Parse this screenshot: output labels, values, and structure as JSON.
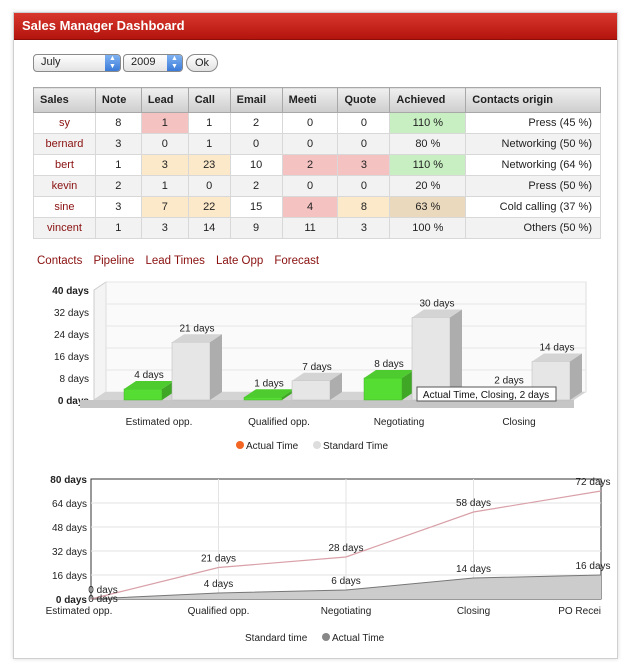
{
  "window": {
    "title": "Sales Manager Dashboard"
  },
  "filters": {
    "month": "July",
    "year": "2009",
    "ok_label": "Ok"
  },
  "table": {
    "headers": [
      "Sales",
      "Note",
      "Lead",
      "Call",
      "Email",
      "Meeti",
      "Quote",
      "Achieved",
      "Contacts origin"
    ],
    "rows": [
      [
        "sy",
        "8",
        "1",
        "1",
        "2",
        "0",
        "0",
        "110 %",
        "Press (45 %)"
      ],
      [
        "bernard",
        "3",
        "0",
        "1",
        "0",
        "0",
        "0",
        "80 %",
        "Networking (50 %)"
      ],
      [
        "bert",
        "1",
        "3",
        "23",
        "10",
        "2",
        "3",
        "110 %",
        "Networking (64 %)"
      ],
      [
        "kevin",
        "2",
        "1",
        "0",
        "2",
        "0",
        "0",
        "20 %",
        "Press (50 %)"
      ],
      [
        "sine",
        "3",
        "7",
        "22",
        "15",
        "4",
        "8",
        "63 %",
        "Cold calling (37 %)"
      ],
      [
        "vincent",
        "1",
        "3",
        "14",
        "9",
        "11",
        "3",
        "100 %",
        "Others (50 %)"
      ]
    ]
  },
  "tabs": [
    "Contacts",
    "Pipeline",
    "Lead Times",
    "Late Opp",
    "Forecast"
  ],
  "chart_data": [
    {
      "type": "bar",
      "categories": [
        "Estimated opp.",
        "Qualified opp.",
        "Negotiating",
        "Closing"
      ],
      "series": [
        {
          "name": "Actual Time",
          "values": [
            4,
            1,
            8,
            2
          ],
          "labels": [
            "4 days",
            "1 days",
            "8 days",
            "2 days"
          ]
        },
        {
          "name": "Standard Time",
          "values": [
            21,
            7,
            30,
            14
          ],
          "labels": [
            "21 days",
            "7 days",
            "30 days",
            "14 days"
          ]
        }
      ],
      "y_ticks": [
        "40 days",
        "32 days",
        "24 days",
        "16 days",
        "8 days",
        "0 days"
      ],
      "ylim": [
        0,
        40
      ],
      "tooltip": "Actual Time, Closing, 2 days",
      "colors": {
        "actual": "#55dd33",
        "standard": "#e6e6e6",
        "legend_actual": "#f26522",
        "legend_standard": "#dddddd"
      }
    },
    {
      "type": "line",
      "categories": [
        "Estimated opp.",
        "Qualified opp.",
        "Negotiating",
        "Closing",
        "PO Recei"
      ],
      "series": [
        {
          "name": "Standard time",
          "values": [
            0,
            21,
            28,
            58,
            72
          ],
          "labels": [
            "0 days",
            "21 days",
            "28 days",
            "58 days",
            "72 days"
          ]
        },
        {
          "name": "Actual Time",
          "values": [
            0,
            4,
            6,
            14,
            16
          ],
          "labels": [
            "0 days",
            "4 days",
            "6 days",
            "14 days",
            "16 days"
          ]
        }
      ],
      "y_ticks": [
        "80 days",
        "64 days",
        "48 days",
        "32 days",
        "16 days",
        "0 days"
      ],
      "ylim": [
        0,
        80
      ],
      "colors": {
        "standard": "#d9a0a8",
        "actual_fill": "#cccccc",
        "actual_line": "#777777",
        "legend_actual": "#888888"
      }
    }
  ]
}
